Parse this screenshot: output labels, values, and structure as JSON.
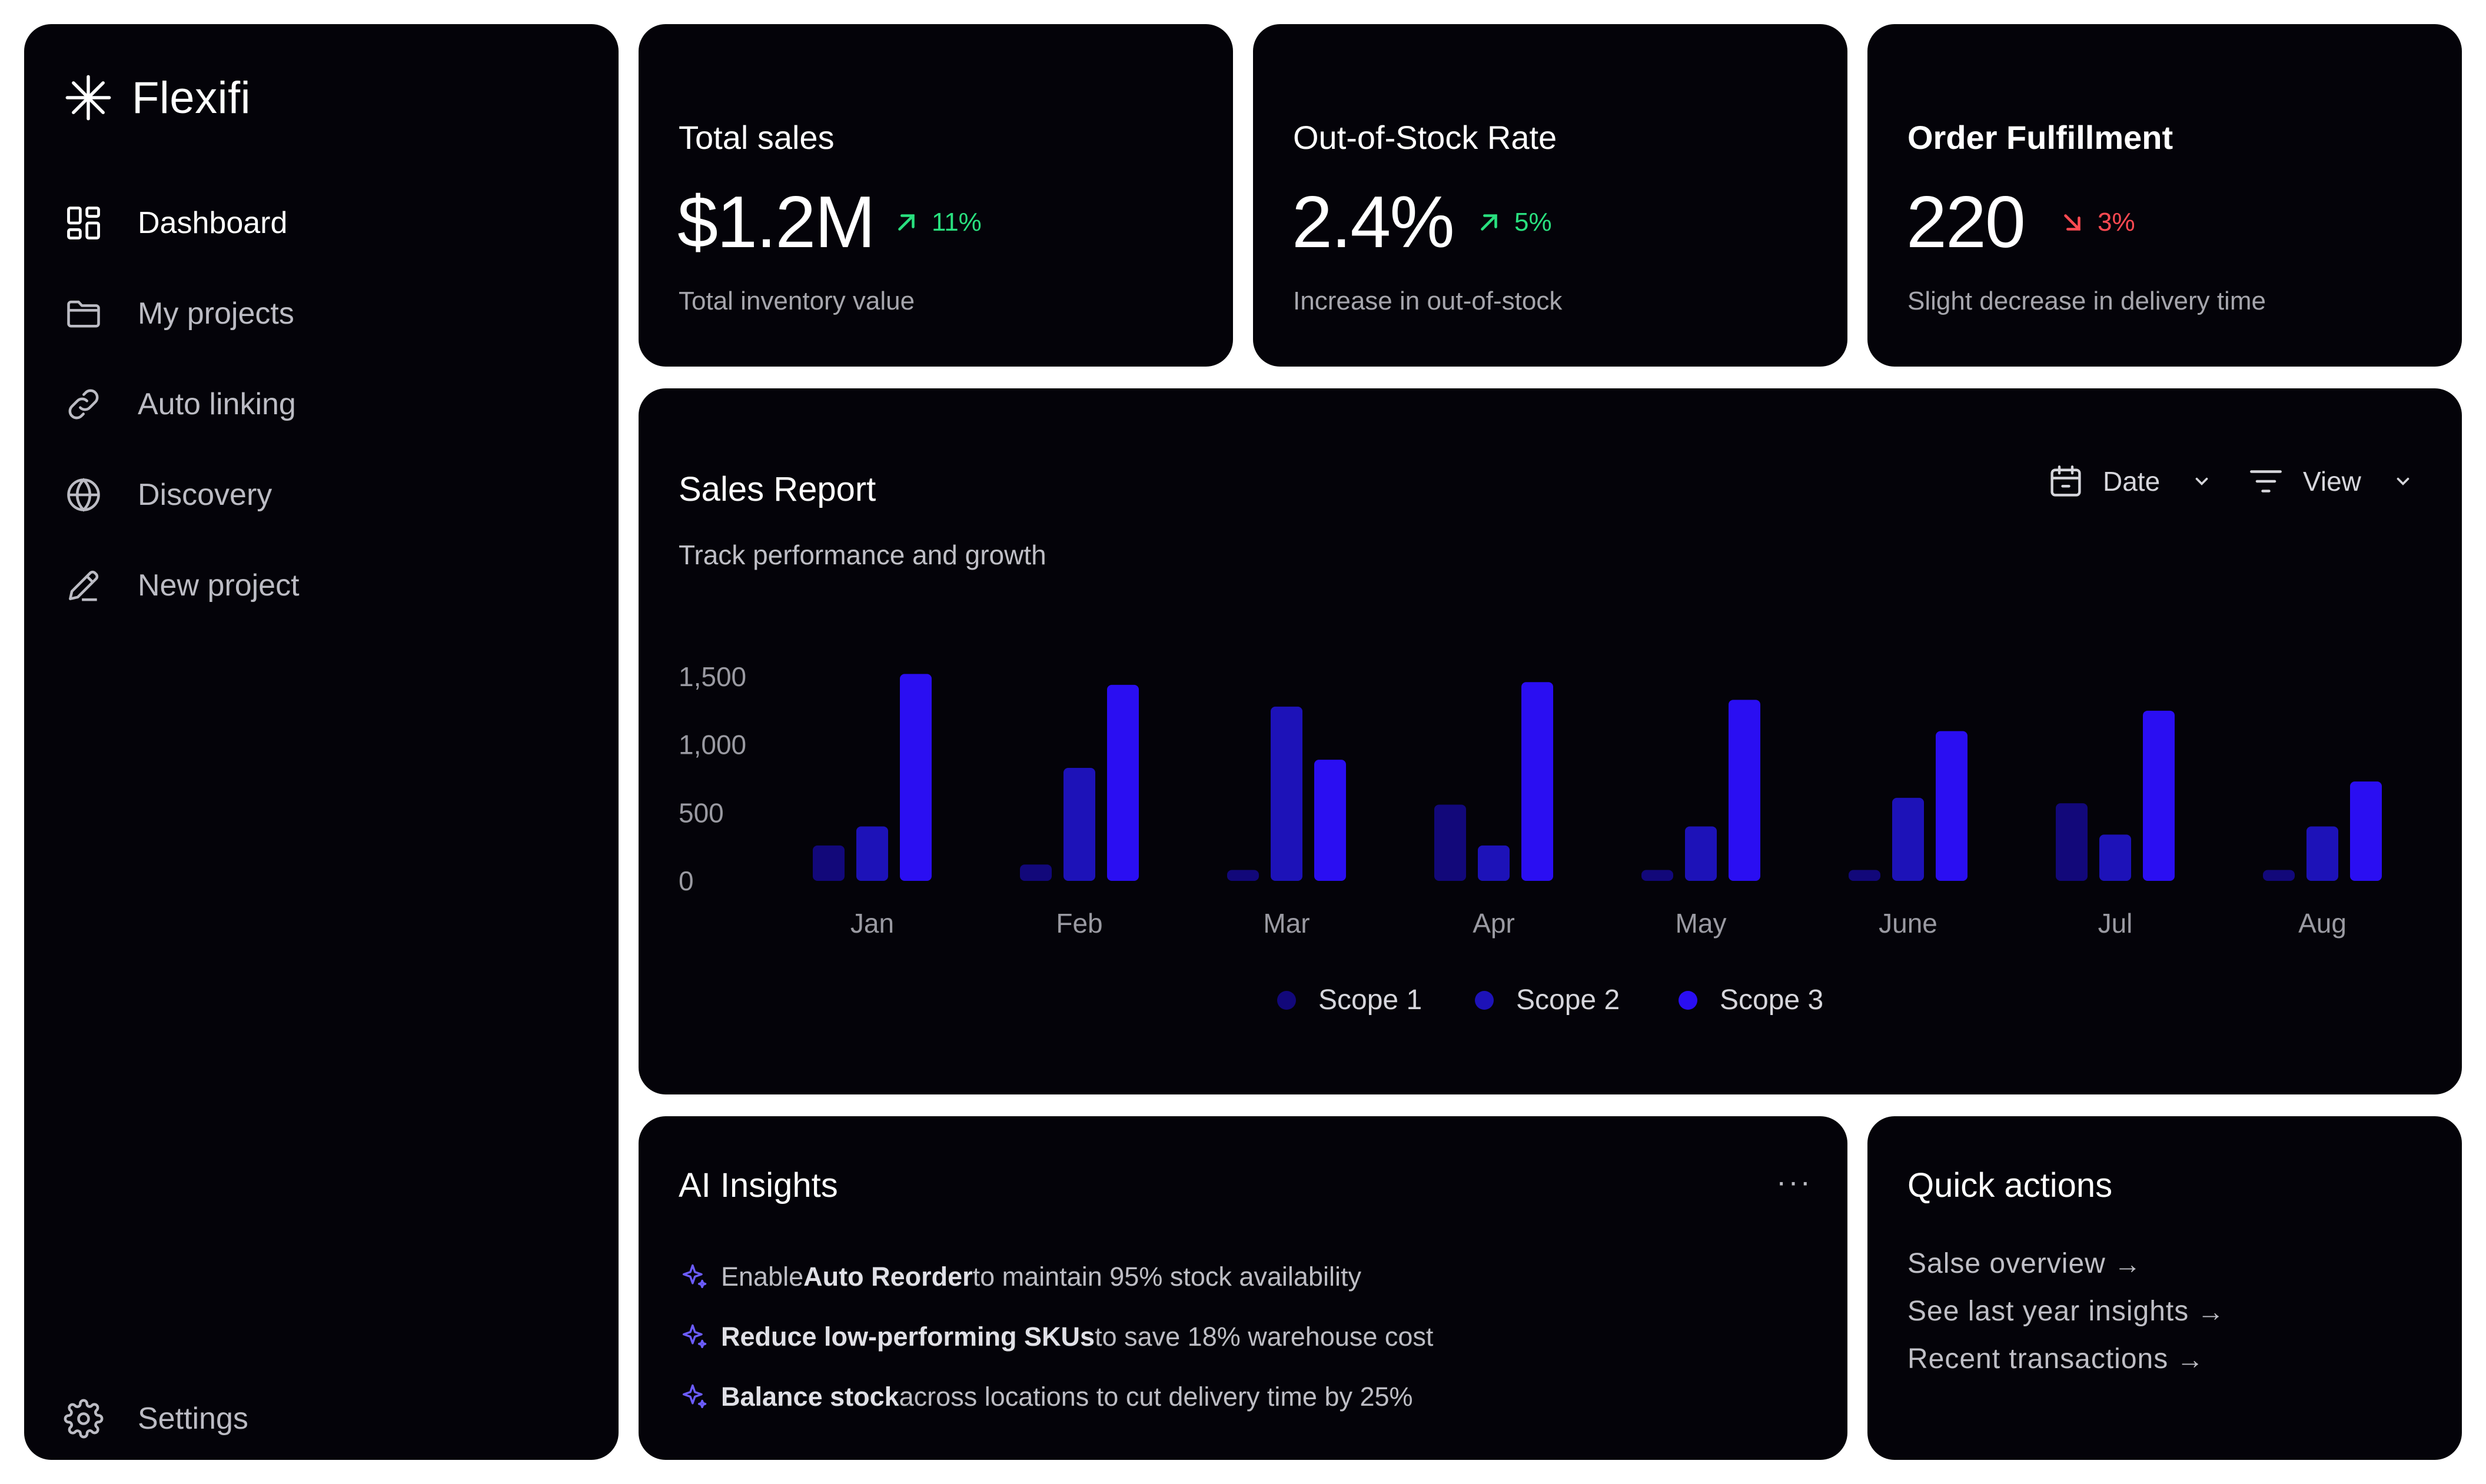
{
  "app": {
    "name": "Flexifi"
  },
  "sidebar": {
    "items": [
      {
        "label": "Dashboard",
        "icon": "dashboard-grid-icon",
        "active": true
      },
      {
        "label": "My projects",
        "icon": "folder-icon"
      },
      {
        "label": "Auto linking",
        "icon": "link-icon"
      },
      {
        "label": "Discovery",
        "icon": "globe-icon"
      },
      {
        "label": "New project",
        "icon": "pencil-icon"
      }
    ],
    "settings_label": "Settings"
  },
  "kpis": [
    {
      "title": "Total sales",
      "value": "$1.2M",
      "delta": "11%",
      "direction": "up",
      "subtitle": "Total inventory value"
    },
    {
      "title": "Out-of-Stock Rate",
      "value": "2.4%",
      "delta": "5%",
      "direction": "up",
      "subtitle": "Increase in out-of-stock"
    },
    {
      "title": "Order Fulfillment",
      "value": "220",
      "delta": "3%",
      "direction": "down",
      "subtitle": "Slight decrease in delivery time"
    }
  ],
  "report": {
    "title": "Sales Report",
    "subtitle": "Track performance and growth",
    "date_filter_label": "Date",
    "view_filter_label": "View"
  },
  "colors": {
    "card_bg": "#040309",
    "up": "#29e07f",
    "down": "#ff4a52",
    "scope1": "#12087a",
    "scope2": "#1d12b8",
    "scope3": "#2a0ef2"
  },
  "chart_data": {
    "type": "bar",
    "categories": [
      "Jan",
      "Feb",
      "Mar",
      "Apr",
      "May",
      "June",
      "Jul",
      "Aug"
    ],
    "series": [
      {
        "name": "Scope 1",
        "values": [
          260,
          120,
          80,
          560,
          80,
          80,
          570,
          80
        ]
      },
      {
        "name": "Scope 2",
        "values": [
          400,
          830,
          1280,
          260,
          400,
          610,
          340,
          400
        ]
      },
      {
        "name": "Scope 3",
        "values": [
          1520,
          1440,
          890,
          1460,
          1330,
          1100,
          1250,
          730
        ]
      }
    ],
    "yticks": [
      "1,500",
      "1,000",
      "500",
      "0"
    ],
    "ylim": [
      0,
      1500
    ],
    "grid": false,
    "legend": "bottom-center"
  },
  "insights": {
    "title": "AI Insights",
    "more_label": "···",
    "items": [
      {
        "pre": "Enable ",
        "bold": "Auto Reorder",
        "post": " to maintain 95% stock availability"
      },
      {
        "pre": "",
        "bold": "Reduce low-performing SKUs",
        "post": " to save 18% warehouse cost"
      },
      {
        "pre": "",
        "bold": "Balance stock",
        "post": " across locations to cut delivery time by 25%"
      }
    ]
  },
  "quick_actions": {
    "title": "Quick actions",
    "links": [
      {
        "label": "Salse overview",
        "arrow": "→"
      },
      {
        "label": "See last year insights",
        "arrow": "→"
      },
      {
        "label": "Recent transactions",
        "arrow": "→"
      }
    ]
  }
}
